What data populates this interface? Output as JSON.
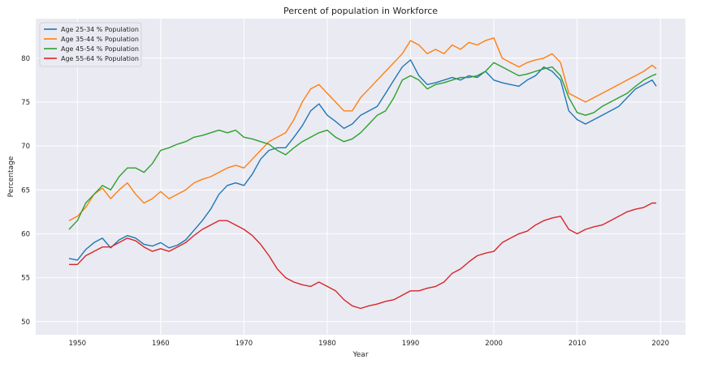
{
  "chart_data": {
    "type": "line",
    "title": "Percent of population in Workforce",
    "xlabel": "Year",
    "ylabel": "Percentage",
    "xlim": [
      1945,
      2023
    ],
    "ylim": [
      48.5,
      84.5
    ],
    "xticks": [
      1950,
      1960,
      1970,
      1980,
      1990,
      2000,
      2010,
      2020
    ],
    "yticks": [
      50,
      55,
      60,
      65,
      70,
      75,
      80
    ],
    "grid": true,
    "legend_position": "top-left",
    "series": [
      {
        "name": "Age 25-34 % Population",
        "color": "#1f77b4",
        "x": [
          1949,
          1950,
          1951,
          1952,
          1953,
          1954,
          1955,
          1956,
          1957,
          1958,
          1959,
          1960,
          1961,
          1962,
          1963,
          1964,
          1965,
          1966,
          1967,
          1968,
          1969,
          1970,
          1971,
          1972,
          1973,
          1974,
          1975,
          1976,
          1977,
          1978,
          1979,
          1980,
          1981,
          1982,
          1983,
          1984,
          1985,
          1986,
          1987,
          1988,
          1989,
          1990,
          1991,
          1992,
          1993,
          1994,
          1995,
          1996,
          1997,
          1998,
          1999,
          2000,
          2001,
          2002,
          2003,
          2004,
          2005,
          2006,
          2007,
          2008,
          2009,
          2010,
          2011,
          2012,
          2013,
          2014,
          2015,
          2016,
          2017,
          2018,
          2019,
          2019.5
        ],
        "y": [
          57.2,
          57.0,
          58.2,
          59.0,
          59.5,
          58.4,
          59.3,
          59.8,
          59.5,
          58.8,
          58.6,
          59.0,
          58.4,
          58.7,
          59.3,
          60.4,
          61.5,
          62.8,
          64.5,
          65.5,
          65.8,
          65.5,
          66.8,
          68.5,
          69.5,
          69.8,
          69.8,
          71.0,
          72.3,
          74.0,
          74.8,
          73.5,
          72.8,
          72.0,
          72.5,
          73.5,
          74.0,
          74.5,
          76.0,
          77.5,
          79.0,
          79.8,
          78.0,
          77.0,
          77.2,
          77.5,
          77.8,
          77.5,
          78.0,
          77.8,
          78.5,
          77.5,
          77.2,
          77.0,
          76.8,
          77.5,
          78.0,
          79.0,
          78.5,
          77.5,
          74.0,
          73.0,
          72.5,
          73.0,
          73.5,
          74.0,
          74.5,
          75.5,
          76.5,
          77.0,
          77.5,
          76.8
        ]
      },
      {
        "name": "Age 35-44 % Population",
        "color": "#ff7f0e",
        "x": [
          1949,
          1950,
          1951,
          1952,
          1953,
          1954,
          1955,
          1956,
          1957,
          1958,
          1959,
          1960,
          1961,
          1962,
          1963,
          1964,
          1965,
          1966,
          1967,
          1968,
          1969,
          1970,
          1971,
          1972,
          1973,
          1974,
          1975,
          1976,
          1977,
          1978,
          1979,
          1980,
          1981,
          1982,
          1983,
          1984,
          1985,
          1986,
          1987,
          1988,
          1989,
          1990,
          1991,
          1992,
          1993,
          1994,
          1995,
          1996,
          1997,
          1998,
          1999,
          2000,
          2001,
          2002,
          2003,
          2004,
          2005,
          2006,
          2007,
          2008,
          2009,
          2010,
          2011,
          2012,
          2013,
          2014,
          2015,
          2016,
          2017,
          2018,
          2019,
          2019.5
        ],
        "y": [
          61.5,
          62.0,
          63.0,
          64.5,
          65.2,
          64.0,
          65.0,
          65.8,
          64.5,
          63.5,
          64.0,
          64.8,
          64.0,
          64.5,
          65.0,
          65.8,
          66.2,
          66.5,
          67.0,
          67.5,
          67.8,
          67.5,
          68.5,
          69.5,
          70.5,
          71.0,
          71.5,
          73.0,
          75.0,
          76.5,
          77.0,
          76.0,
          75.0,
          74.0,
          74.0,
          75.5,
          76.5,
          77.5,
          78.5,
          79.5,
          80.5,
          82.0,
          81.5,
          80.5,
          81.0,
          80.5,
          81.5,
          81.0,
          81.8,
          81.5,
          82.0,
          82.3,
          80.0,
          79.5,
          79.0,
          79.5,
          79.8,
          80.0,
          80.5,
          79.5,
          76.0,
          75.5,
          75.0,
          75.5,
          76.0,
          76.5,
          77.0,
          77.5,
          78.0,
          78.5,
          79.2,
          78.8
        ]
      },
      {
        "name": "Age 45-54 % Population",
        "color": "#2ca02c",
        "x": [
          1949,
          1950,
          1951,
          1952,
          1953,
          1954,
          1955,
          1956,
          1957,
          1958,
          1959,
          1960,
          1961,
          1962,
          1963,
          1964,
          1965,
          1966,
          1967,
          1968,
          1969,
          1970,
          1971,
          1972,
          1973,
          1974,
          1975,
          1976,
          1977,
          1978,
          1979,
          1980,
          1981,
          1982,
          1983,
          1984,
          1985,
          1986,
          1987,
          1988,
          1989,
          1990,
          1991,
          1992,
          1993,
          1994,
          1995,
          1996,
          1997,
          1998,
          1999,
          2000,
          2001,
          2002,
          2003,
          2004,
          2005,
          2006,
          2007,
          2008,
          2009,
          2010,
          2011,
          2012,
          2013,
          2014,
          2015,
          2016,
          2017,
          2018,
          2019,
          2019.5
        ],
        "y": [
          60.5,
          61.5,
          63.5,
          64.5,
          65.5,
          65.0,
          66.5,
          67.5,
          67.5,
          67.0,
          68.0,
          69.5,
          69.8,
          70.2,
          70.5,
          71.0,
          71.2,
          71.5,
          71.8,
          71.5,
          71.8,
          71.0,
          70.8,
          70.5,
          70.2,
          69.5,
          69.0,
          69.8,
          70.5,
          71.0,
          71.5,
          71.8,
          71.0,
          70.5,
          70.8,
          71.5,
          72.5,
          73.5,
          74.0,
          75.5,
          77.5,
          78.0,
          77.5,
          76.5,
          77.0,
          77.2,
          77.5,
          77.8,
          77.8,
          78.0,
          78.5,
          79.5,
          79.0,
          78.5,
          78.0,
          78.2,
          78.5,
          78.8,
          79.0,
          78.0,
          75.5,
          73.8,
          73.5,
          73.8,
          74.5,
          75.0,
          75.5,
          76.0,
          76.8,
          77.5,
          78.0,
          78.2
        ]
      },
      {
        "name": "Age 55-64 % Population",
        "color": "#d62728",
        "x": [
          1949,
          1950,
          1951,
          1952,
          1953,
          1954,
          1955,
          1956,
          1957,
          1958,
          1959,
          1960,
          1961,
          1962,
          1963,
          1964,
          1965,
          1966,
          1967,
          1968,
          1969,
          1970,
          1971,
          1972,
          1973,
          1974,
          1975,
          1976,
          1977,
          1978,
          1979,
          1980,
          1981,
          1982,
          1983,
          1984,
          1985,
          1986,
          1987,
          1988,
          1989,
          1990,
          1991,
          1992,
          1993,
          1994,
          1995,
          1996,
          1997,
          1998,
          1999,
          2000,
          2001,
          2002,
          2003,
          2004,
          2005,
          2006,
          2007,
          2008,
          2009,
          2010,
          2011,
          2012,
          2013,
          2014,
          2015,
          2016,
          2017,
          2018,
          2019,
          2019.5
        ],
        "y": [
          56.5,
          56.5,
          57.5,
          58.0,
          58.5,
          58.5,
          59.0,
          59.5,
          59.2,
          58.5,
          58.0,
          58.3,
          58.0,
          58.5,
          59.0,
          59.8,
          60.5,
          61.0,
          61.5,
          61.5,
          61.0,
          60.5,
          59.8,
          58.8,
          57.5,
          56.0,
          55.0,
          54.5,
          54.2,
          54.0,
          54.5,
          54.0,
          53.5,
          52.5,
          51.8,
          51.5,
          51.8,
          52.0,
          52.3,
          52.5,
          53.0,
          53.5,
          53.5,
          53.8,
          54.0,
          54.5,
          55.5,
          56.0,
          56.8,
          57.5,
          57.8,
          58.0,
          59.0,
          59.5,
          60.0,
          60.3,
          61.0,
          61.5,
          61.8,
          62.0,
          60.5,
          60.0,
          60.5,
          60.8,
          61.0,
          61.5,
          62.0,
          62.5,
          62.8,
          63.0,
          63.5,
          63.5
        ]
      }
    ]
  }
}
